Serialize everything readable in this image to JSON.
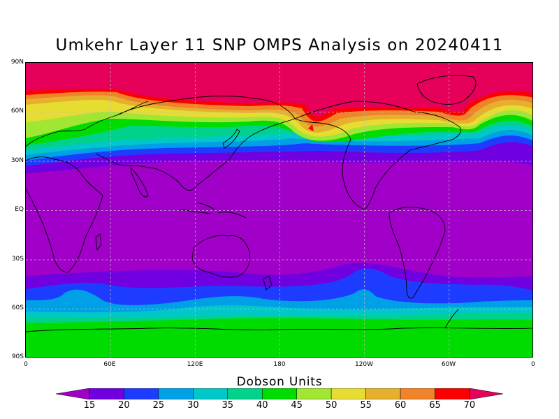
{
  "title": "Umkehr Layer 11 SNP OMPS Analysis on 20240411",
  "map": {
    "lat_labels": [
      "90N",
      "60N",
      "30N",
      "EQ",
      "30S",
      "60S",
      "90S"
    ],
    "lon_labels": [
      "0",
      "60E",
      "120E",
      "180",
      "120W",
      "60W",
      "0"
    ]
  },
  "colorbar": {
    "title": "Dobson Units",
    "ticks": [
      "15",
      "20",
      "25",
      "30",
      "35",
      "40",
      "45",
      "50",
      "55",
      "60",
      "65",
      "70"
    ],
    "colors": [
      "#a000c8",
      "#7000e0",
      "#1e3cff",
      "#00a0e6",
      "#00c8c8",
      "#00d28c",
      "#00dc00",
      "#a0e632",
      "#e6dc32",
      "#e6af2d",
      "#f08228",
      "#fa0000",
      "#e6005a"
    ]
  }
}
